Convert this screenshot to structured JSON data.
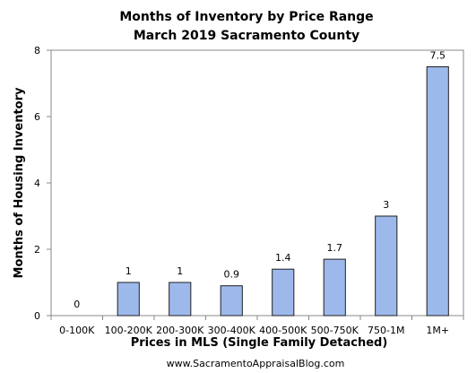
{
  "chart_data": {
    "type": "bar",
    "title": "Months of Inventory by Price Range",
    "subtitle": "March 2019 Sacramento County",
    "xlabel": "Prices in MLS (Single Family Detached)",
    "ylabel": "Months of Housing Inventory",
    "categories": [
      "0-100K",
      "100-200K",
      "200-300K",
      "300-400K",
      "400-500K",
      "500-750K",
      "750-1M",
      "1M+"
    ],
    "values": [
      0,
      1,
      1,
      0.9,
      1.4,
      1.7,
      3,
      7.5
    ],
    "data_labels": [
      "0",
      "1",
      "1",
      "0.9",
      "1.4",
      "1.7",
      "3",
      "7.5"
    ],
    "ylim": [
      0,
      8
    ],
    "yticks": [
      "0",
      "2",
      "4",
      "6",
      "8"
    ],
    "grid": false,
    "bar_color": "#9DB9EC",
    "bar_border_color": "#1F1F1F"
  },
  "footer": "www.SacramentoAppraisalBlog.com"
}
